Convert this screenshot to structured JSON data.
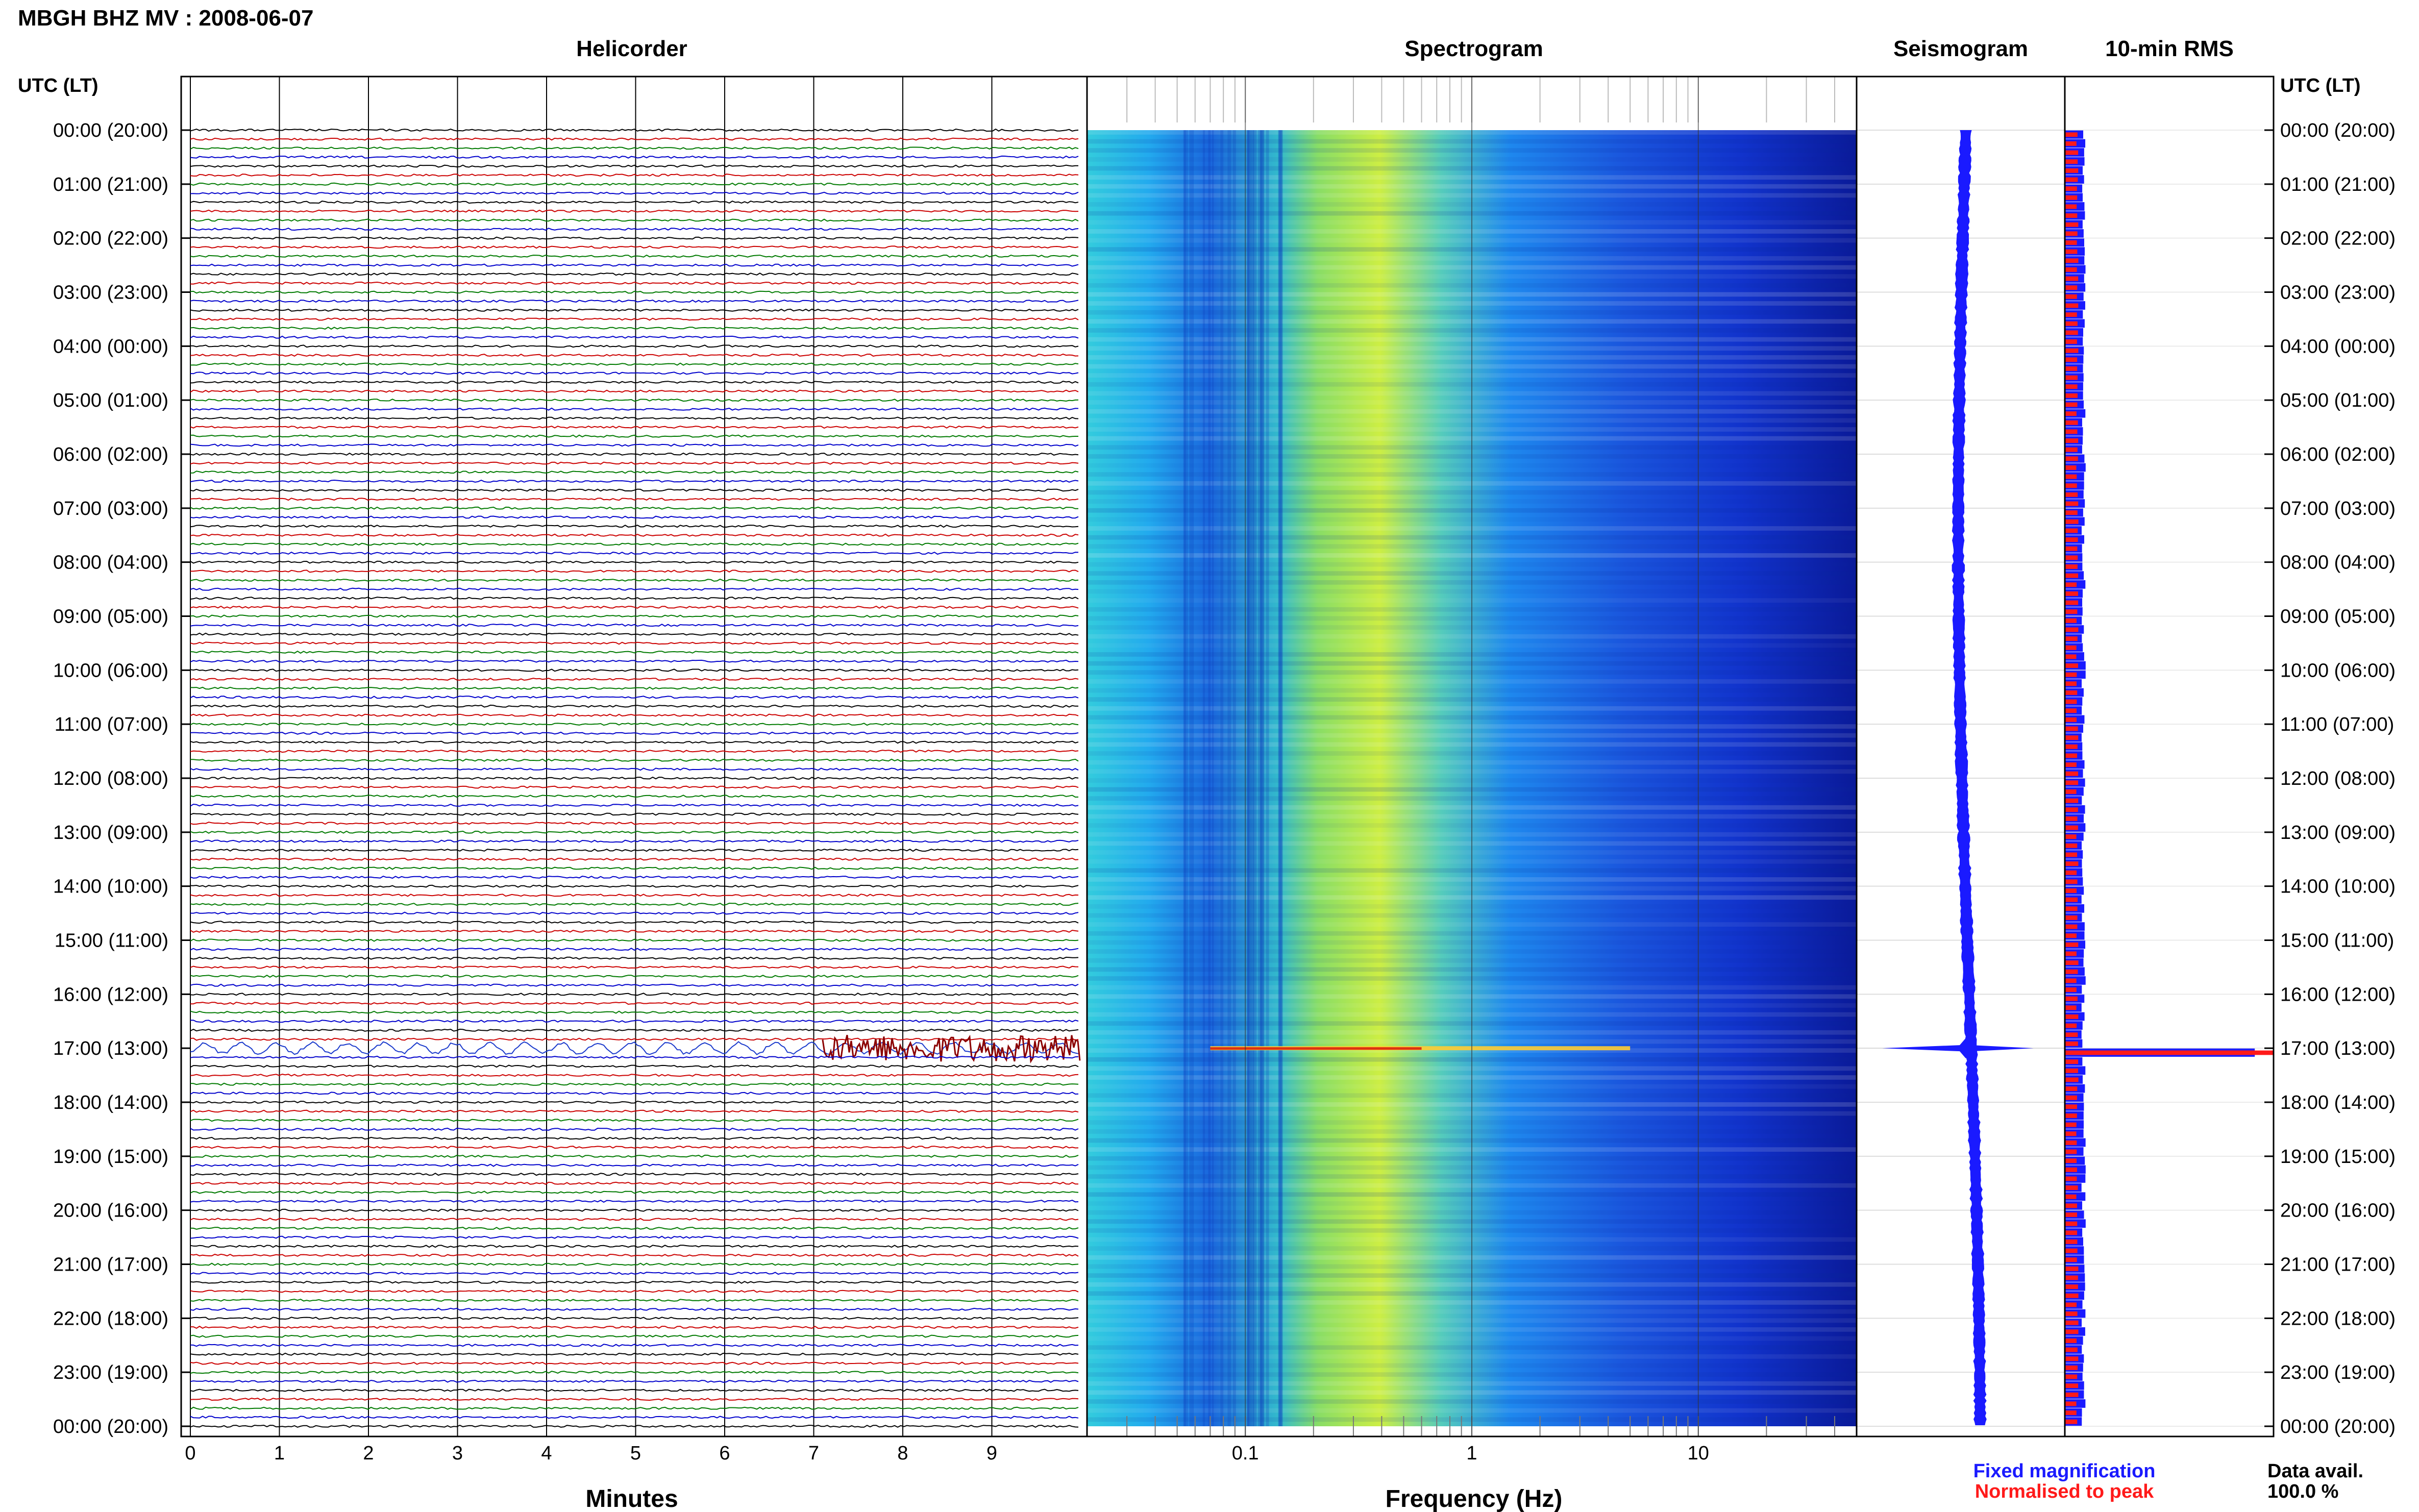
{
  "header": {
    "station_title": "MBGH BHZ MV : 2008-06-07"
  },
  "panels": {
    "helicorder_title": "Helicorder",
    "spectrogram_title": "Spectrogram",
    "seismogram_title": "Seismogram",
    "rms_title": "10-min RMS"
  },
  "axes": {
    "left_time_header": "UTC (LT)",
    "right_time_header": "UTC (LT)",
    "helicorder_xlabel": "Minutes",
    "spectrogram_xlabel": "Frequency (Hz)"
  },
  "legend": {
    "fixed_label": "Fixed magnification",
    "fixed_color": "#1a1aff",
    "normalised_label": "Normalised to peak",
    "normalised_color": "#ff1a1a"
  },
  "data_availability": {
    "label": "Data avail.",
    "value": "100.0 %"
  },
  "chart_data": {
    "type": "heatmap",
    "time_labels": [
      "00:00 (20:00)",
      "01:00 (21:00)",
      "02:00 (22:00)",
      "03:00 (23:00)",
      "04:00 (00:00)",
      "05:00 (01:00)",
      "06:00 (02:00)",
      "07:00 (03:00)",
      "08:00 (04:00)",
      "09:00 (05:00)",
      "10:00 (06:00)",
      "11:00 (07:00)",
      "12:00 (08:00)",
      "13:00 (09:00)",
      "14:00 (10:00)",
      "15:00 (11:00)",
      "16:00 (12:00)",
      "17:00 (13:00)",
      "18:00 (14:00)",
      "19:00 (15:00)",
      "20:00 (16:00)",
      "21:00 (17:00)",
      "22:00 (18:00)",
      "23:00 (19:00)",
      "00:00 (20:00)"
    ],
    "helicorder": {
      "x_ticks": [
        "0",
        "1",
        "2",
        "3",
        "4",
        "5",
        "6",
        "7",
        "8",
        "9"
      ],
      "xlim": [
        0,
        10
      ],
      "rows": 144,
      "line_colors": [
        "#000000",
        "#cc0000",
        "#007a00",
        "#0000cc"
      ],
      "event": {
        "hour": 17,
        "start_minute": 7.1,
        "end_minute": 10,
        "color": "#8b0000"
      }
    },
    "spectrogram": {
      "x_ticks": [
        "0.1",
        "1",
        "10"
      ],
      "x_scale": "log",
      "xlim": [
        0.02,
        50
      ],
      "colormap": "jet",
      "event_band": {
        "hour": 17,
        "fmin": 0.07,
        "fmax": 5
      }
    },
    "seismogram": {
      "color": "#1a1aff",
      "event_hour": 17
    },
    "rms_10min": {
      "fixed_color": "#1a1aff",
      "normalised_color": "#ff1a1a",
      "background_fixed": 0.09,
      "background_normalised": 0.06,
      "event_hour": 17,
      "event_fixed": 0.91,
      "event_normalised": 1.0
    }
  }
}
